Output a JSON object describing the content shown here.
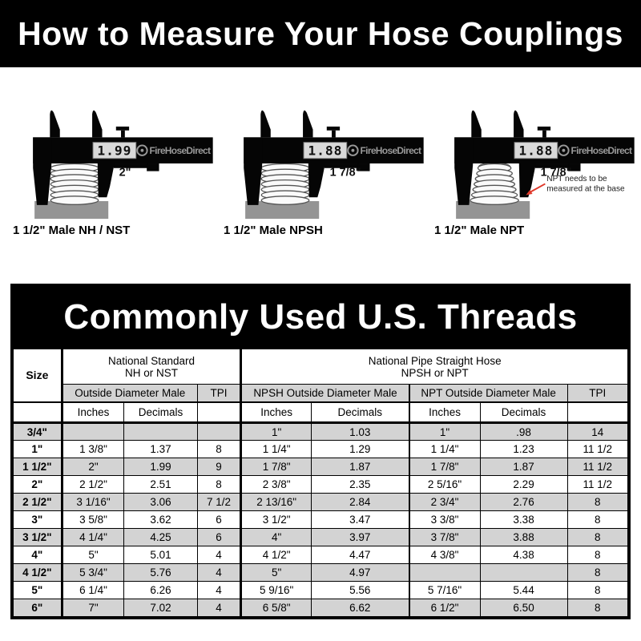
{
  "page": {
    "title": "How to Measure Your Hose Couplings"
  },
  "figures": [
    {
      "reading": "1.99",
      "brand": "FireHoseDirect",
      "measure_label": "2\"",
      "caption": "1 1/2\" Male NH / NST",
      "tapered": false,
      "note_line1": "",
      "note_line2": ""
    },
    {
      "reading": "1.88",
      "brand": "FireHoseDirect",
      "measure_label": "1 7/8\"",
      "caption": "1 1/2\" Male NPSH",
      "tapered": false,
      "note_line1": "",
      "note_line2": ""
    },
    {
      "reading": "1.88",
      "brand": "FireHoseDirect",
      "measure_label": "1 7/8\"",
      "caption": "1 1/2\" Male NPT",
      "tapered": true,
      "note_line1": "NPT needs to be",
      "note_line2": "measured at the base"
    }
  ],
  "table": {
    "title": "Commonly Used U.S. Threads",
    "size_label": "Size",
    "group1_line1": "National Standard",
    "group1_line2": "NH or NST",
    "group2_line1": "National Pipe Straight Hose",
    "group2_line2": "NPSH or NPT",
    "sub_od_male": "Outside Diameter Male",
    "sub_npsh_od": "NPSH Outside Diameter Male",
    "sub_npt_od": "NPT Outside Diameter Male",
    "sub_tpi": "TPI",
    "sub_inches": "Inches",
    "sub_decimals": "Decimals"
  },
  "colors": {
    "banner_bg": "#000000",
    "banner_fg": "#ffffff",
    "row_alt_gray": "#d3d3d3",
    "header_gray": "#d3d3d3",
    "note_arrow_red": "#e0392b",
    "lcd_bg": "#d9d9d9",
    "brand_gray": "#999999",
    "base_gray": "#949494"
  },
  "chart_data": {
    "type": "table",
    "title": "Commonly Used U.S. Threads",
    "columns": [
      "Size",
      "NH/NST Outside Diameter Male Inches",
      "NH/NST Outside Diameter Male Decimals",
      "NH/NST TPI",
      "NPSH Outside Diameter Male Inches",
      "NPSH Outside Diameter Male Decimals",
      "NPT Outside Diameter Male Inches",
      "NPT Outside Diameter Male Decimals",
      "NPSH/NPT TPI"
    ],
    "rows": [
      [
        "3/4\"",
        "",
        "",
        "",
        "1\"",
        "1.03",
        "1\"",
        ".98",
        "14"
      ],
      [
        "1\"",
        "1 3/8\"",
        "1.37",
        "8",
        "1 1/4\"",
        "1.29",
        "1 1/4\"",
        "1.23",
        "11 1/2"
      ],
      [
        "1 1/2\"",
        "2\"",
        "1.99",
        "9",
        "1 7/8\"",
        "1.87",
        "1 7/8\"",
        "1.87",
        "11 1/2"
      ],
      [
        "2\"",
        "2 1/2\"",
        "2.51",
        "8",
        "2 3/8\"",
        "2.35",
        "2 5/16\"",
        "2.29",
        "11 1/2"
      ],
      [
        "2 1/2\"",
        "3 1/16\"",
        "3.06",
        "7 1/2",
        "2 13/16\"",
        "2.84",
        "2 3/4\"",
        "2.76",
        "8"
      ],
      [
        "3\"",
        "3 5/8\"",
        "3.62",
        "6",
        "3 1/2\"",
        "3.47",
        "3 3/8\"",
        "3.38",
        "8"
      ],
      [
        "3 1/2\"",
        "4 1/4\"",
        "4.25",
        "6",
        "4\"",
        "3.97",
        "3 7/8\"",
        "3.88",
        "8"
      ],
      [
        "4\"",
        "5\"",
        "5.01",
        "4",
        "4 1/2\"",
        "4.47",
        "4 3/8\"",
        "4.38",
        "8"
      ],
      [
        "4 1/2\"",
        "5 3/4\"",
        "5.76",
        "4",
        "5\"",
        "4.97",
        "",
        "",
        "8"
      ],
      [
        "5\"",
        "6 1/4\"",
        "6.26",
        "4",
        "5 9/16\"",
        "5.56",
        "5 7/16\"",
        "5.44",
        "8"
      ],
      [
        "6\"",
        "7\"",
        "7.02",
        "4",
        "6 5/8\"",
        "6.62",
        "6 1/2\"",
        "6.50",
        "8"
      ]
    ]
  }
}
